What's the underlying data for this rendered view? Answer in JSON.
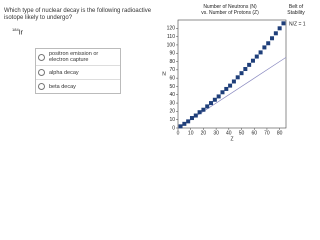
{
  "question": "Which type of nuclear decay is the following radioactive isotope likely to undergo?",
  "isotope": {
    "mass": "184",
    "symbol": "Ir"
  },
  "options": [
    "positron emission or electron capture",
    "alpha decay",
    "beta decay"
  ],
  "chart_data": {
    "type": "scatter",
    "title": "Number of Neutrons (N) vs. Number of Protons (Z)",
    "x_label": "Z",
    "y_label": "N",
    "xlim": [
      0,
      85
    ],
    "ylim": [
      0,
      130
    ],
    "xticks": [
      0,
      10,
      20,
      30,
      40,
      50,
      60,
      70,
      80
    ],
    "yticks": [
      0,
      10,
      20,
      30,
      40,
      50,
      60,
      70,
      80,
      90,
      100,
      110,
      120
    ],
    "series": [
      {
        "name": "Belt of Stability",
        "color": "#1f3f7a",
        "x": [
          2,
          5,
          8,
          11,
          14,
          17,
          20,
          23,
          26,
          29,
          32,
          35,
          38,
          41,
          44,
          47,
          50,
          53,
          56,
          59,
          62,
          65,
          68,
          71,
          74,
          77,
          80,
          83
        ],
        "values": [
          2,
          5,
          8,
          12,
          15,
          19,
          22,
          26,
          30,
          34,
          38,
          43,
          47,
          51,
          56,
          61,
          66,
          71,
          76,
          81,
          86,
          91,
          97,
          102,
          108,
          114,
          120,
          126
        ]
      },
      {
        "name": "N/Z = 1",
        "color": "#8a8ac0",
        "x": [
          0,
          85
        ],
        "values": [
          0,
          85
        ]
      }
    ]
  }
}
